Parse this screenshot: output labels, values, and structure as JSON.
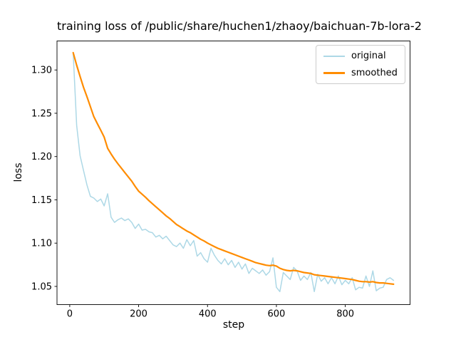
{
  "chart_data": {
    "type": "line",
    "title": "training loss of /public/share/huchen1/zhaoy/baichuan-7b-lora-2",
    "xlabel": "step",
    "ylabel": "loss",
    "xlim": [
      -37,
      988
    ],
    "ylim": [
      1.029,
      1.3335
    ],
    "xticks": [
      0,
      200,
      400,
      600,
      800
    ],
    "xtick_labels": [
      "0",
      "200",
      "400",
      "600",
      "800"
    ],
    "yticks": [
      1.05,
      1.1,
      1.15,
      1.2,
      1.25,
      1.3
    ],
    "ytick_labels": [
      "1.05",
      "1.10",
      "1.15",
      "1.20",
      "1.25",
      "1.30"
    ],
    "grid": false,
    "legend_position": "upper right",
    "spine_color": "#000000",
    "background_color": "#ffffff",
    "legend_border_color": "#cccccc",
    "x": [
      10,
      20,
      30,
      40,
      50,
      60,
      70,
      80,
      90,
      100,
      110,
      120,
      130,
      140,
      150,
      160,
      170,
      180,
      190,
      200,
      210,
      220,
      230,
      240,
      250,
      260,
      270,
      280,
      290,
      300,
      310,
      320,
      330,
      340,
      350,
      360,
      370,
      380,
      390,
      400,
      410,
      420,
      430,
      440,
      450,
      460,
      470,
      480,
      490,
      500,
      510,
      520,
      530,
      540,
      550,
      560,
      570,
      580,
      590,
      600,
      610,
      620,
      630,
      640,
      650,
      660,
      670,
      680,
      690,
      700,
      710,
      720,
      730,
      740,
      750,
      760,
      770,
      780,
      790,
      800,
      810,
      820,
      830,
      840,
      850,
      860,
      870,
      880,
      890,
      900,
      910,
      920,
      930,
      940
    ],
    "series": [
      {
        "name": "original",
        "color": "#add8e6",
        "linewidth": 1.5,
        "values": [
          1.32,
          1.236,
          1.201,
          1.184,
          1.167,
          1.154,
          1.152,
          1.148,
          1.151,
          1.143,
          1.157,
          1.13,
          1.124,
          1.127,
          1.129,
          1.126,
          1.128,
          1.124,
          1.117,
          1.122,
          1.115,
          1.116,
          1.113,
          1.112,
          1.107,
          1.109,
          1.105,
          1.108,
          1.103,
          1.098,
          1.096,
          1.1,
          1.094,
          1.104,
          1.097,
          1.103,
          1.085,
          1.089,
          1.082,
          1.078,
          1.094,
          1.086,
          1.08,
          1.076,
          1.082,
          1.075,
          1.08,
          1.072,
          1.078,
          1.07,
          1.076,
          1.065,
          1.071,
          1.068,
          1.065,
          1.069,
          1.063,
          1.067,
          1.083,
          1.049,
          1.044,
          1.066,
          1.062,
          1.058,
          1.072,
          1.068,
          1.057,
          1.062,
          1.058,
          1.066,
          1.044,
          1.064,
          1.056,
          1.06,
          1.053,
          1.06,
          1.053,
          1.062,
          1.052,
          1.057,
          1.053,
          1.06,
          1.046,
          1.049,
          1.048,
          1.062,
          1.05,
          1.068,
          1.045,
          1.048,
          1.049,
          1.058,
          1.06,
          1.057
        ]
      },
      {
        "name": "smoothed",
        "color": "#ff8c00",
        "linewidth": 2.2,
        "values": [
          1.32,
          1.3055,
          1.2925,
          1.28,
          1.269,
          1.2575,
          1.246,
          1.238,
          1.2305,
          1.2225,
          1.2095,
          1.203,
          1.197,
          1.1915,
          1.1865,
          1.1815,
          1.1765,
          1.1715,
          1.1655,
          1.16,
          1.1565,
          1.153,
          1.149,
          1.1455,
          1.142,
          1.1385,
          1.135,
          1.1315,
          1.1285,
          1.125,
          1.1215,
          1.119,
          1.1165,
          1.114,
          1.112,
          1.1095,
          1.107,
          1.1045,
          1.1025,
          1.1,
          1.098,
          1.096,
          1.094,
          1.0925,
          1.091,
          1.0895,
          1.088,
          1.0865,
          1.085,
          1.0835,
          1.082,
          1.0805,
          1.079,
          1.0775,
          1.0765,
          1.0755,
          1.0745,
          1.074,
          1.0745,
          1.0735,
          1.071,
          1.0695,
          1.0685,
          1.068,
          1.0685,
          1.068,
          1.067,
          1.066,
          1.0655,
          1.065,
          1.0635,
          1.063,
          1.0625,
          1.062,
          1.0615,
          1.061,
          1.0605,
          1.06,
          1.0595,
          1.059,
          1.0585,
          1.058,
          1.057,
          1.056,
          1.0555,
          1.0555,
          1.055,
          1.0555,
          1.0545,
          1.054,
          1.054,
          1.0535,
          1.053,
          1.0525
        ]
      }
    ]
  }
}
